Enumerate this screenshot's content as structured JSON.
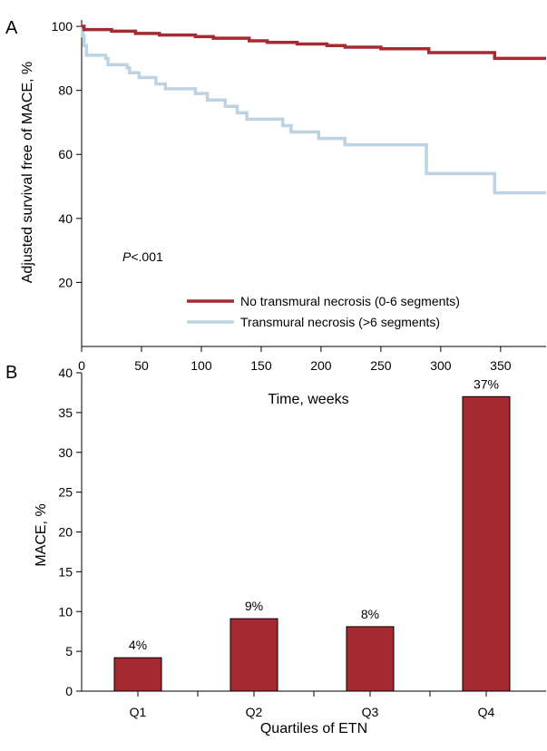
{
  "chart_data": [
    {
      "panel_label": "A",
      "type": "line",
      "subtype": "step",
      "xlabel": "Time, weeks",
      "ylabel": "Adjusted survival free of MACE, %",
      "xlim": [
        0,
        388
      ],
      "ylim": [
        0,
        102
      ],
      "xticks": [
        0,
        50,
        100,
        150,
        200,
        250,
        300,
        350
      ],
      "yticks": [
        20,
        40,
        60,
        80,
        100
      ],
      "grid": false,
      "legend_position": "bottom-right",
      "annotation": "P<.001",
      "series": [
        {
          "name": "No transmural necrosis (0-6 segments)",
          "color": "#a52a32",
          "points": [
            [
              0,
              100
            ],
            [
              2,
              99
            ],
            [
              25,
              98.5
            ],
            [
              45,
              97.8
            ],
            [
              65,
              97.3
            ],
            [
              95,
              96.8
            ],
            [
              110,
              96.3
            ],
            [
              140,
              95.5
            ],
            [
              155,
              95
            ],
            [
              180,
              94.5
            ],
            [
              205,
              94
            ],
            [
              220,
              93.5
            ],
            [
              250,
              93
            ],
            [
              290,
              91.8
            ],
            [
              345,
              90
            ],
            [
              388,
              90
            ]
          ]
        },
        {
          "name": "Transmural necrosis (>6 segments)",
          "color": "#bcd3e3",
          "points": [
            [
              0,
              100
            ],
            [
              1,
              97
            ],
            [
              2,
              94
            ],
            [
              4,
              91
            ],
            [
              20,
              90
            ],
            [
              22,
              88
            ],
            [
              38,
              87
            ],
            [
              40,
              85.5
            ],
            [
              48,
              84
            ],
            [
              62,
              82
            ],
            [
              70,
              80.5
            ],
            [
              95,
              79
            ],
            [
              105,
              77
            ],
            [
              120,
              75
            ],
            [
              130,
              73
            ],
            [
              138,
              71
            ],
            [
              168,
              69
            ],
            [
              175,
              67
            ],
            [
              198,
              65
            ],
            [
              220,
              63
            ],
            [
              288,
              63
            ],
            [
              288,
              54
            ],
            [
              345,
              54
            ],
            [
              345,
              48
            ],
            [
              388,
              48
            ]
          ]
        }
      ]
    },
    {
      "panel_label": "B",
      "type": "bar",
      "xlabel": "Quartiles of ETN",
      "ylabel": "MACE, %",
      "ylim": [
        0,
        40
      ],
      "yticks": [
        0,
        5,
        10,
        15,
        20,
        25,
        30,
        35,
        40
      ],
      "categories": [
        "Q1",
        "Q2",
        "Q3",
        "Q4"
      ],
      "values": [
        4.2,
        9.1,
        8.1,
        37
      ],
      "data_labels": [
        "4%",
        "9%",
        "8%",
        "37%"
      ],
      "bar_color": "#a52a32",
      "grid": false
    }
  ]
}
